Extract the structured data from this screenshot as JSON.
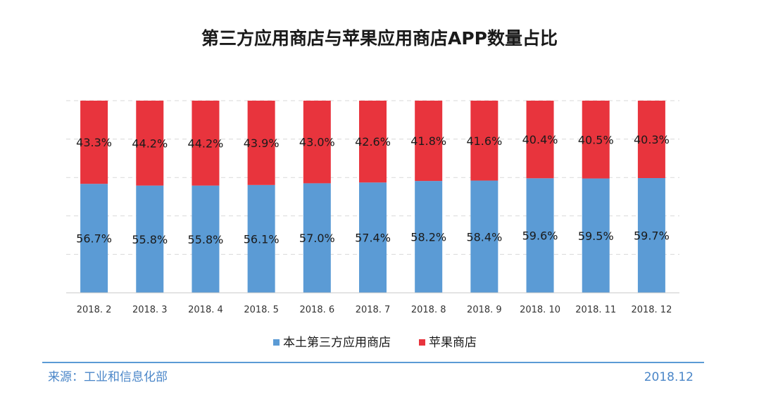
{
  "chart_data": {
    "type": "bar",
    "stacked": true,
    "title": "第三方应用商店与苹果应用商店APP数量占比",
    "categories": [
      "2018. 2",
      "2018. 3",
      "2018. 4",
      "2018. 5",
      "2018. 6",
      "2018. 7",
      "2018. 8",
      "2018. 9",
      "2018. 10",
      "2018. 11",
      "2018. 12"
    ],
    "series": [
      {
        "name": "本土第三方应用商店",
        "color": "#5b9bd5",
        "values": [
          56.7,
          55.8,
          55.8,
          56.1,
          57.0,
          57.4,
          58.2,
          58.4,
          59.6,
          59.5,
          59.7
        ],
        "labels": [
          "56.7%",
          "55.8%",
          "55.8%",
          "56.1%",
          "57.0%",
          "57.4%",
          "58.2%",
          "58.4%",
          "59.6%",
          "59.5%",
          "59.7%"
        ]
      },
      {
        "name": "苹果商店",
        "color": "#e8343d",
        "values": [
          43.3,
          44.2,
          44.2,
          43.9,
          43.0,
          42.6,
          41.8,
          41.6,
          40.4,
          40.5,
          40.3
        ],
        "labels": [
          "43.3%",
          "44.2%",
          "44.2%",
          "43.9%",
          "43.0%",
          "42.6%",
          "41.8%",
          "41.6%",
          "40.4%",
          "40.5%",
          "40.3%"
        ]
      }
    ],
    "ylim": [
      0,
      100
    ],
    "grid": true,
    "legend": "bottom-center"
  },
  "footer": {
    "source": "来源：工业和信息化部",
    "date": "2018.12",
    "accent_color": "#5b9bd5"
  }
}
